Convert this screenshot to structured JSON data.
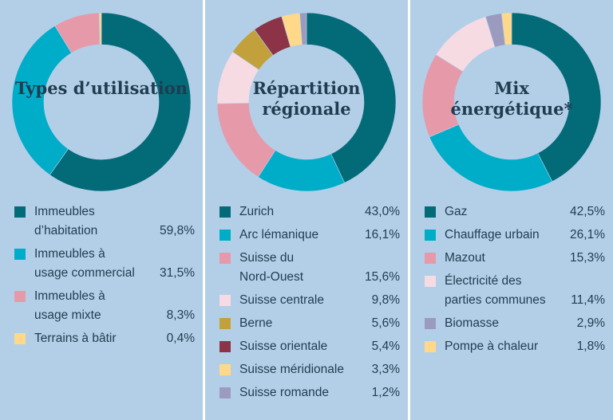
{
  "chart_data": [
    {
      "type": "pie",
      "title": "Types d’utilisation",
      "slices": [
        {
          "label": "Immeubles\nd’habitation",
          "value": 59.8,
          "display": "59,8%",
          "color": "#036a78"
        },
        {
          "label": "Immeubles à\nusage commercial",
          "value": 31.5,
          "display": "31,5%",
          "color": "#00adc8"
        },
        {
          "label": "Immeubles à\nusage mixte",
          "value": 8.3,
          "display": "8,3%",
          "color": "#e69aa9"
        },
        {
          "label": "Terrains à bâtir",
          "value": 0.4,
          "display": "0,4%",
          "color": "#ffd88a"
        }
      ]
    },
    {
      "type": "pie",
      "title": "Répartition\nrégionale",
      "slices": [
        {
          "label": "Zurich",
          "value": 43.0,
          "display": "43,0%",
          "color": "#036a78"
        },
        {
          "label": "Arc lémanique",
          "value": 16.1,
          "display": "16,1%",
          "color": "#00adc8"
        },
        {
          "label": "Suisse du\nNord-Ouest",
          "value": 15.6,
          "display": "15,6%",
          "color": "#e69aa9"
        },
        {
          "label": "Suisse centrale",
          "value": 9.8,
          "display": "9,8%",
          "color": "#f6dbe3"
        },
        {
          "label": "Berne",
          "value": 5.6,
          "display": "5,6%",
          "color": "#c2a03c"
        },
        {
          "label": "Suisse orientale",
          "value": 5.4,
          "display": "5,4%",
          "color": "#8c3347"
        },
        {
          "label": "Suisse méridionale",
          "value": 3.3,
          "display": "3,3%",
          "color": "#ffd88a"
        },
        {
          "label": "Suisse romande",
          "value": 1.2,
          "display": "1,2%",
          "color": "#9b9bbf"
        }
      ]
    },
    {
      "type": "pie",
      "title": "Mix\nénergétique*",
      "slices": [
        {
          "label": "Gaz",
          "value": 42.5,
          "display": "42,5%",
          "color": "#036a78"
        },
        {
          "label": "Chauffage urbain",
          "value": 26.1,
          "display": "26,1%",
          "color": "#00adc8"
        },
        {
          "label": "Mazout",
          "value": 15.3,
          "display": "15,3%",
          "color": "#e69aa9"
        },
        {
          "label": "Électricité des\nparties communes",
          "value": 11.4,
          "display": "11,4%",
          "color": "#f6dbe3"
        },
        {
          "label": "Biomasse",
          "value": 2.9,
          "display": "2,9%",
          "color": "#9b9bbf"
        },
        {
          "label": "Pompe à chaleur",
          "value": 1.8,
          "display": "1,8%",
          "color": "#ffd88a"
        }
      ]
    }
  ],
  "colors": {
    "panel_background": "#b3cfe8",
    "divider": "#ffffff",
    "text": "#1f3c50"
  }
}
